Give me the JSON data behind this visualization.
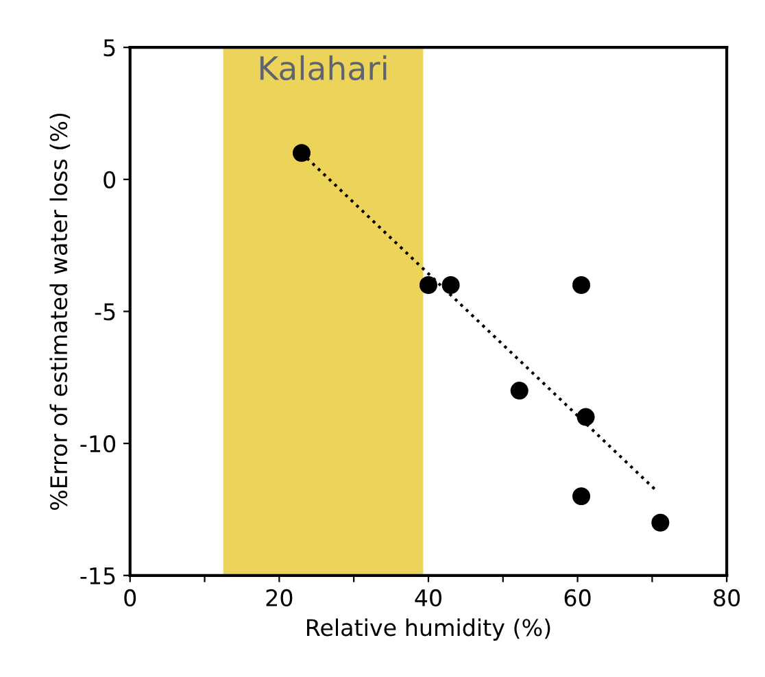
{
  "chart_data": {
    "type": "scatter",
    "xlabel": "Relative humidity (%)",
    "ylabel": "%Error of estimated water loss (%)",
    "xlim": [
      0,
      80
    ],
    "ylim": [
      -15,
      5
    ],
    "xticks": [
      0,
      {
        "value": 10,
        "label": null
      },
      20,
      {
        "value": 30,
        "label": null
      },
      40,
      {
        "value": 50,
        "label": null
      },
      60,
      {
        "value": 70,
        "label": null
      },
      80
    ],
    "yticks": [
      -15,
      -10,
      -5,
      0,
      5
    ],
    "grid": false,
    "legend": false,
    "marker": "circle",
    "bands": [
      {
        "axis": "x",
        "from": 12.5,
        "to": 39.3,
        "label": "Kalahari",
        "color": "#ecd45a"
      }
    ],
    "series": [
      {
        "color": "#000000",
        "x": [
          23,
          40,
          43,
          52.2,
          60.5,
          61.1,
          60.5,
          71.1
        ],
        "values": [
          1,
          -4,
          -4,
          -8,
          -4,
          -9,
          -12,
          -13
        ]
      },
      {
        "type": "line",
        "color": "#000000",
        "line_style": "dotted",
        "marker": "none",
        "x": [
          23,
          70.6
        ],
        "values": [
          1,
          -11.8
        ]
      }
    ]
  }
}
